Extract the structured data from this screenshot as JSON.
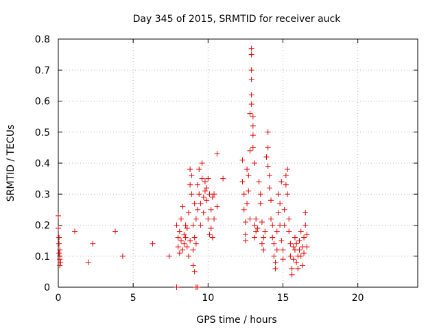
{
  "chart_data": {
    "type": "scatter",
    "title": "Day 345 of 2015, SRMTID for receiver auck",
    "xlabel": "GPS time / hours",
    "ylabel": "SRMTID / TECUs",
    "xlim": [
      0,
      24
    ],
    "ylim": [
      0,
      0.8
    ],
    "xticks": [
      "0",
      "5",
      "10",
      "15",
      "20"
    ],
    "yticks": [
      "0",
      "0.1",
      "0.2",
      "0.3",
      "0.4",
      "0.5",
      "0.6",
      "0.7",
      "0.8"
    ],
    "grid": true,
    "marker": "+",
    "color": "#e00000",
    "series": [
      {
        "name": "SRMTID",
        "points": [
          [
            0.0,
            0.23
          ],
          [
            0.0,
            0.19
          ],
          [
            0.05,
            0.16
          ],
          [
            0.05,
            0.14
          ],
          [
            0.1,
            0.12
          ],
          [
            0.1,
            0.1
          ],
          [
            0.1,
            0.09
          ],
          [
            0.15,
            0.08
          ],
          [
            0.1,
            0.07
          ],
          [
            0.05,
            0.11
          ],
          [
            1.1,
            0.18
          ],
          [
            2.0,
            0.08
          ],
          [
            2.3,
            0.14
          ],
          [
            3.8,
            0.18
          ],
          [
            4.3,
            0.1
          ],
          [
            6.3,
            0.14
          ],
          [
            7.4,
            0.1
          ],
          [
            7.9,
            0.0
          ],
          [
            9.2,
            0.0
          ],
          [
            9.3,
            0.0
          ],
          [
            7.9,
            0.2
          ],
          [
            8.0,
            0.16
          ],
          [
            8.0,
            0.13
          ],
          [
            8.1,
            0.18
          ],
          [
            8.1,
            0.11
          ],
          [
            8.2,
            0.15
          ],
          [
            8.2,
            0.22
          ],
          [
            8.3,
            0.12
          ],
          [
            8.3,
            0.26
          ],
          [
            8.4,
            0.17
          ],
          [
            8.4,
            0.14
          ],
          [
            8.5,
            0.2
          ],
          [
            8.5,
            0.16
          ],
          [
            8.6,
            0.13
          ],
          [
            8.6,
            0.19
          ],
          [
            8.7,
            0.1
          ],
          [
            8.7,
            0.24
          ],
          [
            8.8,
            0.15
          ],
          [
            8.8,
            0.38
          ],
          [
            8.8,
            0.33
          ],
          [
            8.9,
            0.36
          ],
          [
            8.9,
            0.3
          ],
          [
            9.0,
            0.2
          ],
          [
            9.0,
            0.12
          ],
          [
            9.0,
            0.07
          ],
          [
            9.1,
            0.27
          ],
          [
            9.1,
            0.16
          ],
          [
            9.1,
            0.05
          ],
          [
            9.2,
            0.22
          ],
          [
            9.2,
            0.14
          ],
          [
            9.3,
            0.33
          ],
          [
            9.3,
            0.25
          ],
          [
            9.4,
            0.38
          ],
          [
            9.4,
            0.3
          ],
          [
            9.5,
            0.2
          ],
          [
            9.5,
            0.27
          ],
          [
            9.6,
            0.35
          ],
          [
            9.6,
            0.4
          ],
          [
            9.7,
            0.29
          ],
          [
            9.7,
            0.24
          ],
          [
            9.8,
            0.34
          ],
          [
            9.8,
            0.31
          ],
          [
            9.9,
            0.32
          ],
          [
            9.9,
            0.28
          ],
          [
            10.0,
            0.35
          ],
          [
            10.0,
            0.22
          ],
          [
            10.1,
            0.3
          ],
          [
            10.1,
            0.17
          ],
          [
            10.2,
            0.25
          ],
          [
            10.2,
            0.19
          ],
          [
            10.3,
            0.29
          ],
          [
            10.3,
            0.16
          ],
          [
            10.4,
            0.3
          ],
          [
            10.4,
            0.22
          ],
          [
            10.6,
            0.26
          ],
          [
            10.6,
            0.43
          ],
          [
            11.0,
            0.35
          ],
          [
            12.3,
            0.41
          ],
          [
            12.3,
            0.34
          ],
          [
            12.4,
            0.3
          ],
          [
            12.4,
            0.25
          ],
          [
            12.5,
            0.21
          ],
          [
            12.5,
            0.17
          ],
          [
            12.5,
            0.15
          ],
          [
            12.6,
            0.38
          ],
          [
            12.6,
            0.27
          ],
          [
            12.7,
            0.36
          ],
          [
            12.7,
            0.31
          ],
          [
            12.8,
            0.22
          ],
          [
            12.8,
            0.44
          ],
          [
            12.8,
            0.56
          ],
          [
            12.9,
            0.77
          ],
          [
            12.9,
            0.75
          ],
          [
            12.9,
            0.7
          ],
          [
            12.9,
            0.67
          ],
          [
            12.9,
            0.62
          ],
          [
            12.9,
            0.59
          ],
          [
            13.0,
            0.55
          ],
          [
            13.0,
            0.52
          ],
          [
            13.0,
            0.49
          ],
          [
            13.0,
            0.45
          ],
          [
            13.1,
            0.4
          ],
          [
            13.1,
            0.2
          ],
          [
            13.1,
            0.16
          ],
          [
            13.2,
            0.18
          ],
          [
            13.2,
            0.22
          ],
          [
            13.3,
            0.19
          ],
          [
            13.4,
            0.34
          ],
          [
            13.5,
            0.3
          ],
          [
            13.5,
            0.27
          ],
          [
            13.6,
            0.21
          ],
          [
            13.6,
            0.14
          ],
          [
            13.7,
            0.12
          ],
          [
            13.7,
            0.16
          ],
          [
            13.8,
            0.18
          ],
          [
            13.9,
            0.42
          ],
          [
            14.0,
            0.5
          ],
          [
            14.0,
            0.45
          ],
          [
            14.0,
            0.39
          ],
          [
            14.1,
            0.36
          ],
          [
            14.1,
            0.32
          ],
          [
            14.2,
            0.28
          ],
          [
            14.2,
            0.22
          ],
          [
            14.3,
            0.2
          ],
          [
            14.3,
            0.16
          ],
          [
            14.4,
            0.14
          ],
          [
            14.4,
            0.1
          ],
          [
            14.5,
            0.08
          ],
          [
            14.5,
            0.06
          ],
          [
            14.6,
            0.12
          ],
          [
            14.6,
            0.18
          ],
          [
            14.7,
            0.24
          ],
          [
            14.7,
            0.3
          ],
          [
            14.8,
            0.27
          ],
          [
            14.8,
            0.2
          ],
          [
            14.9,
            0.34
          ],
          [
            14.9,
            0.15
          ],
          [
            15.0,
            0.12
          ],
          [
            15.0,
            0.09
          ],
          [
            15.1,
            0.2
          ],
          [
            15.1,
            0.25
          ],
          [
            15.2,
            0.36
          ],
          [
            15.2,
            0.33
          ],
          [
            15.3,
            0.38
          ],
          [
            15.3,
            0.3
          ],
          [
            15.4,
            0.22
          ],
          [
            15.4,
            0.18
          ],
          [
            15.5,
            0.14
          ],
          [
            15.5,
            0.1
          ],
          [
            15.6,
            0.06
          ],
          [
            15.6,
            0.04
          ],
          [
            15.7,
            0.13
          ],
          [
            15.7,
            0.09
          ],
          [
            15.8,
            0.16
          ],
          [
            15.8,
            0.12
          ],
          [
            15.9,
            0.14
          ],
          [
            15.9,
            0.08
          ],
          [
            16.0,
            0.1
          ],
          [
            16.0,
            0.06
          ],
          [
            16.1,
            0.15
          ],
          [
            16.1,
            0.12
          ],
          [
            16.2,
            0.18
          ],
          [
            16.2,
            0.1
          ],
          [
            16.3,
            0.13
          ],
          [
            16.3,
            0.07
          ],
          [
            16.4,
            0.16
          ],
          [
            16.4,
            0.11
          ],
          [
            16.5,
            0.2
          ],
          [
            16.5,
            0.24
          ],
          [
            16.6,
            0.17
          ],
          [
            16.6,
            0.13
          ]
        ]
      }
    ]
  }
}
